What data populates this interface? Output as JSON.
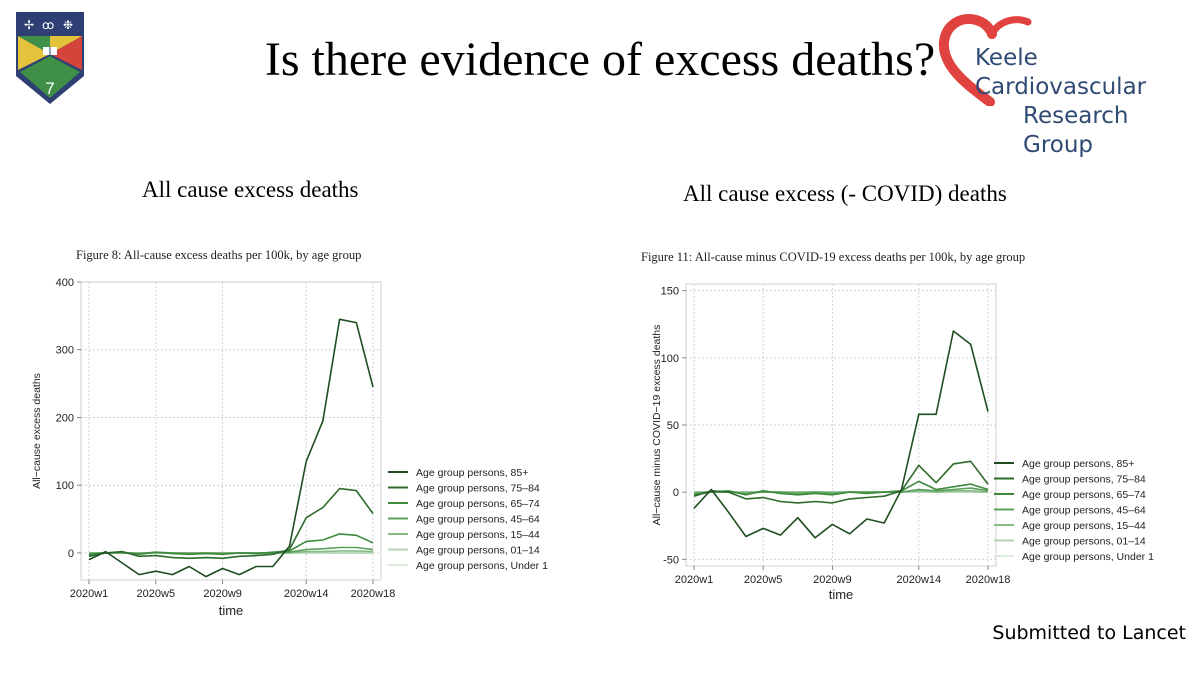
{
  "slide": {
    "title": "Is there evidence of excess deaths?",
    "group_logo_line1": "Keele Cardiovascular",
    "group_logo_line2": "Research Group",
    "left_heading": "All cause excess deaths",
    "right_heading": "All cause excess (- COVID) deaths",
    "footer": "Submitted to Lancet",
    "crest_number": "7"
  },
  "colors": {
    "logo_text": "#2f4a73",
    "logo_heart": "#e0433f",
    "crest_navy": "#2e3f73",
    "crest_yellow": "#e3c33c",
    "crest_red": "#d5443a",
    "crest_green": "#3f8f47"
  },
  "chart_data": [
    {
      "type": "line",
      "caption": "Figure 8: All-cause excess deaths per 100k, by age group",
      "xlabel": "time",
      "ylabel": "All−cause excess deaths",
      "x": [
        "2020w1",
        "2020w2",
        "2020w3",
        "2020w4",
        "2020w5",
        "2020w6",
        "2020w7",
        "2020w8",
        "2020w9",
        "2020w10",
        "2020w11",
        "2020w12",
        "2020w13",
        "2020w14",
        "2020w15",
        "2020w16",
        "2020w17",
        "2020w18"
      ],
      "xticks": [
        "2020w1",
        "2020w5",
        "2020w9",
        "2020w14",
        "2020w18"
      ],
      "ylim": [
        -40,
        400
      ],
      "yticks": [
        0,
        100,
        200,
        300,
        400
      ],
      "grid": true,
      "legend_position": "right",
      "series": [
        {
          "name": "Age group persons, 85+",
          "color": "#1f4d1f",
          "values": [
            -10,
            2,
            -15,
            -32,
            -27,
            -32,
            -20,
            -35,
            -23,
            -32,
            -20,
            -20,
            10,
            135,
            195,
            345,
            340,
            245
          ]
        },
        {
          "name": "Age group persons, 75–84",
          "color": "#2d6b2d",
          "values": [
            -5,
            0,
            2,
            -5,
            -4,
            -7,
            -8,
            -7,
            -8,
            -5,
            -4,
            -2,
            5,
            52,
            67,
            95,
            92,
            58
          ]
        },
        {
          "name": "Age group persons, 65–74",
          "color": "#3d8a3d",
          "values": [
            -3,
            0,
            1,
            -2,
            1,
            -1,
            -2,
            -1,
            -2,
            0,
            -1,
            1,
            3,
            17,
            19,
            28,
            26,
            15
          ]
        },
        {
          "name": "Age group persons, 45–64",
          "color": "#5aa05a",
          "values": [
            -1,
            0,
            0,
            -1,
            1,
            0,
            -1,
            0,
            -1,
            0,
            0,
            0,
            1,
            5,
            6,
            8,
            8,
            5
          ]
        },
        {
          "name": "Age group persons, 15–44",
          "color": "#86bb86",
          "values": [
            0,
            0,
            0,
            0,
            0,
            0,
            0,
            0,
            0,
            0,
            0,
            0,
            0,
            2,
            2,
            3,
            3,
            2
          ]
        },
        {
          "name": "Age group persons, 01–14",
          "color": "#b4d6b4",
          "values": [
            0,
            0,
            0,
            0,
            0,
            0,
            0,
            0,
            0,
            0,
            0,
            0,
            0,
            0,
            0,
            0,
            0,
            0
          ]
        },
        {
          "name": "Age group persons, Under 1",
          "color": "#dcebdc",
          "values": [
            0,
            0,
            0,
            0,
            0,
            0,
            0,
            0,
            0,
            0,
            0,
            0,
            0,
            0,
            0,
            0,
            0,
            0
          ]
        }
      ]
    },
    {
      "type": "line",
      "caption": "Figure 11: All-cause minus COVID-19 excess deaths per 100k, by age group",
      "xlabel": "time",
      "ylabel": "All−cause minus COVID−19 excess deaths",
      "x": [
        "2020w1",
        "2020w2",
        "2020w3",
        "2020w4",
        "2020w5",
        "2020w6",
        "2020w7",
        "2020w8",
        "2020w9",
        "2020w10",
        "2020w11",
        "2020w12",
        "2020w13",
        "2020w14",
        "2020w15",
        "2020w16",
        "2020w17",
        "2020w18"
      ],
      "xticks": [
        "2020w1",
        "2020w5",
        "2020w9",
        "2020w14",
        "2020w18"
      ],
      "ylim": [
        -55,
        155
      ],
      "yticks": [
        -50,
        0,
        50,
        100,
        150
      ],
      "grid": true,
      "legend_position": "right",
      "series": [
        {
          "name": "Age group persons, 85+",
          "color": "#1f4d1f",
          "values": [
            -12,
            2,
            -15,
            -33,
            -27,
            -32,
            -19,
            -34,
            -24,
            -31,
            -20,
            -23,
            2,
            58,
            58,
            120,
            110,
            60
          ]
        },
        {
          "name": "Age group persons, 75–84",
          "color": "#2d6b2d",
          "values": [
            -3,
            1,
            0,
            -5,
            -4,
            -7,
            -8,
            -7,
            -8,
            -5,
            -4,
            -3,
            1,
            20,
            7,
            21,
            23,
            6
          ]
        },
        {
          "name": "Age group persons, 65–74",
          "color": "#3d8a3d",
          "values": [
            -2,
            0,
            1,
            -2,
            1,
            -1,
            -2,
            -1,
            -2,
            0,
            -1,
            0,
            1,
            8,
            2,
            4,
            6,
            2
          ]
        },
        {
          "name": "Age group persons, 45–64",
          "color": "#5aa05a",
          "values": [
            -1,
            0,
            0,
            -1,
            0,
            0,
            -1,
            0,
            -1,
            0,
            0,
            0,
            0,
            2,
            1,
            2,
            3,
            1
          ]
        },
        {
          "name": "Age group persons, 15–44",
          "color": "#86bb86",
          "values": [
            0,
            0,
            0,
            0,
            0,
            0,
            0,
            0,
            0,
            0,
            0,
            0,
            0,
            1,
            0,
            1,
            1,
            0
          ]
        },
        {
          "name": "Age group persons, 01–14",
          "color": "#b4d6b4",
          "values": [
            0,
            0,
            0,
            0,
            0,
            0,
            0,
            0,
            0,
            0,
            0,
            0,
            0,
            0,
            0,
            0,
            0,
            0
          ]
        },
        {
          "name": "Age group persons, Under 1",
          "color": "#dcebdc",
          "values": [
            0,
            0,
            0,
            0,
            0,
            0,
            0,
            0,
            0,
            0,
            0,
            0,
            0,
            0,
            0,
            0,
            0,
            0
          ]
        }
      ]
    }
  ]
}
